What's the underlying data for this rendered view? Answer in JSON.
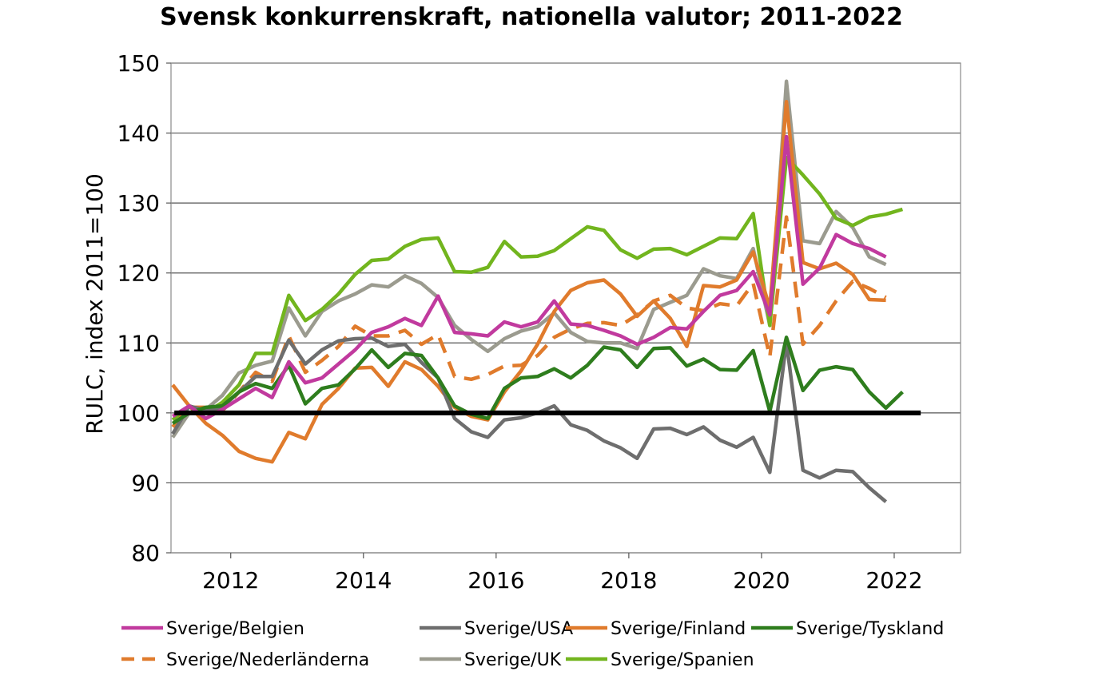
{
  "chart_data": {
    "type": "line",
    "title": "Svensk konkurrenskraft, nationella valutor; 2011-2022",
    "ylabel": "RULC, index 2011=100",
    "xlabel": "",
    "ylim": [
      80,
      150
    ],
    "yticks": [
      "80",
      "90",
      "100",
      "110",
      "120",
      "130",
      "140",
      "150"
    ],
    "xlim": [
      2011.1,
      2023.0
    ],
    "xticks": [
      "2012",
      "2014",
      "2016",
      "2018",
      "2020",
      "2022"
    ],
    "grid": "horizontal",
    "legend_position": "bottom",
    "reference_line": {
      "y": 100,
      "color": "#000000"
    },
    "x": [
      2011.125,
      2011.375,
      2011.625,
      2011.875,
      2012.125,
      2012.375,
      2012.625,
      2012.875,
      2013.125,
      2013.375,
      2013.625,
      2013.875,
      2014.125,
      2014.375,
      2014.625,
      2014.875,
      2015.125,
      2015.375,
      2015.625,
      2015.875,
      2016.125,
      2016.375,
      2016.625,
      2016.875,
      2017.125,
      2017.375,
      2017.625,
      2017.875,
      2018.125,
      2018.375,
      2018.625,
      2018.875,
      2019.125,
      2019.375,
      2019.625,
      2019.875,
      2020.125,
      2020.375,
      2020.625,
      2020.875,
      2021.125,
      2021.375,
      2021.625,
      2021.875,
      2022.125
    ],
    "series": [
      {
        "name": "Sverige/Belgien",
        "color": "#c13a9e",
        "dash": false,
        "values": [
          99.5,
          101,
          99.2,
          100.5,
          102,
          103.5,
          102.2,
          107.3,
          104.3,
          105,
          107,
          109,
          111.5,
          112.3,
          113.5,
          112.5,
          116.7,
          111.5,
          111.3,
          111,
          113,
          112.3,
          113,
          116,
          112.7,
          112.5,
          111.8,
          111,
          109.8,
          110.8,
          112.2,
          112,
          114.5,
          116.8,
          117.5,
          120.2,
          114,
          139.5,
          118.4,
          120.7,
          125.5,
          124.2,
          123.5,
          122.3,
          null
        ]
      },
      {
        "name": "Sverige/USA",
        "color": "#6e6e6e",
        "dash": false,
        "values": [
          97,
          101,
          100.3,
          100.8,
          103,
          105.2,
          105.2,
          110.4,
          107,
          109,
          110.3,
          110.6,
          110.7,
          109.5,
          109.8,
          107.2,
          105,
          99.2,
          97.3,
          96.5,
          99,
          99.3,
          100,
          101,
          98.3,
          97.5,
          96,
          95,
          93.5,
          97.7,
          97.8,
          96.9,
          98,
          96.1,
          95.1,
          96.5,
          91.5,
          110.1,
          91.8,
          90.7,
          91.8,
          91.6,
          89.3,
          87.3,
          null
        ]
      },
      {
        "name": "Sverige/Finland",
        "color": "#e07b2c",
        "dash": false,
        "values": [
          104,
          101,
          98.5,
          96.8,
          94.5,
          93.5,
          93,
          97.2,
          96.3,
          101.2,
          103.5,
          106.4,
          106.5,
          103.8,
          107.3,
          106.2,
          103.8,
          100.8,
          99.5,
          99,
          103,
          106,
          109.8,
          114.5,
          117.5,
          118.6,
          119,
          117,
          113.8,
          116,
          113.5,
          109.5,
          118.2,
          118,
          119,
          123,
          115,
          144.5,
          121.5,
          120.6,
          121.4,
          119.8,
          116.2,
          116.1,
          null
        ]
      },
      {
        "name": "Sverige/Tyskland",
        "color": "#2e7d1d",
        "dash": false,
        "values": [
          98.5,
          100,
          100.8,
          101,
          103,
          104.2,
          103.5,
          106.8,
          101.3,
          103.5,
          104,
          106.3,
          109,
          106.5,
          108.5,
          108.2,
          105,
          101,
          99.8,
          99.2,
          103.5,
          105,
          105.2,
          106.3,
          105,
          106.8,
          109.4,
          109,
          106.5,
          109.2,
          109.3,
          106.7,
          107.7,
          106.2,
          106.1,
          108.9,
          100.2,
          110.8,
          103.2,
          106.1,
          106.6,
          106.2,
          103,
          100.7,
          103
        ]
      },
      {
        "name": "Sverige/Nederländerna",
        "color": "#e07b2c",
        "dash": true,
        "values": [
          98,
          100.8,
          100.8,
          100.3,
          103,
          105.8,
          104.5,
          111,
          105.8,
          107.5,
          109.5,
          112.4,
          111,
          111,
          111.8,
          109.8,
          111.2,
          105.2,
          104.8,
          105.5,
          106.7,
          106.8,
          108.2,
          110.8,
          112,
          112.8,
          112.9,
          112.5,
          114,
          116,
          116.8,
          115,
          114.6,
          115.6,
          115.3,
          118.5,
          108,
          128,
          109.8,
          112.5,
          116,
          118.8,
          117.8,
          116.5,
          null
        ]
      },
      {
        "name": "Sverige/UK",
        "color": "#9b9b8f",
        "dash": false,
        "values": [
          96.5,
          100,
          100.5,
          102.5,
          105.7,
          106.8,
          107.4,
          115,
          111,
          114.5,
          116,
          117,
          118.3,
          118,
          119.6,
          118.5,
          116.5,
          112.5,
          110.5,
          108.8,
          110.6,
          111.7,
          112.3,
          114.3,
          111.5,
          110.2,
          110,
          110,
          109.2,
          114.8,
          115.8,
          116.8,
          120.6,
          119.6,
          119.2,
          123.5,
          112.5,
          147.4,
          124.6,
          124.2,
          128.8,
          126.5,
          122.3,
          121.2,
          null
        ]
      },
      {
        "name": "Sverige/Spanien",
        "color": "#72b51e",
        "dash": false,
        "values": [
          99,
          101,
          100,
          101.5,
          104,
          108.5,
          108.5,
          116.8,
          113.2,
          114.8,
          117,
          119.8,
          121.8,
          122,
          123.8,
          124.8,
          125,
          120.2,
          120.1,
          120.8,
          124.5,
          122.3,
          122.4,
          123.2,
          124.9,
          126.6,
          126.1,
          123.3,
          122.1,
          123.4,
          123.5,
          122.6,
          123.8,
          125,
          124.9,
          128.5,
          112.5,
          136.5,
          134,
          131.3,
          127.8,
          126.8,
          128,
          128.4,
          129.1
        ]
      }
    ]
  }
}
